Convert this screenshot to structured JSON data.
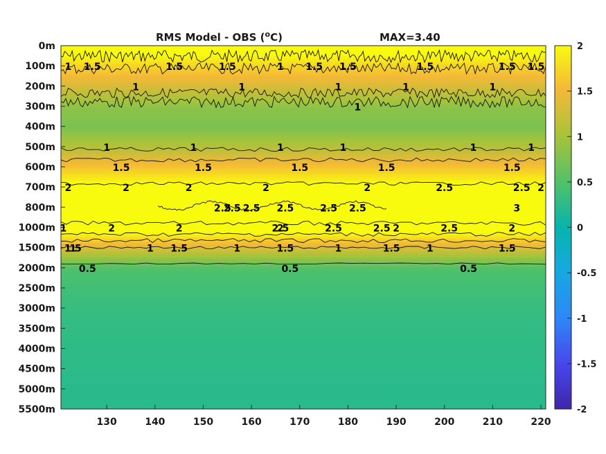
{
  "chart_data": {
    "type": "heatmap",
    "title": "RMS Model - OBS (",
    "title_superscript": "o",
    "title_unit": "C)",
    "annotation": "MAX=3.40",
    "x_ticks": [
      130,
      140,
      150,
      160,
      170,
      180,
      190,
      200,
      210,
      220
    ],
    "xlim": [
      120.5,
      221
    ],
    "y_ticks": [
      "0m",
      "100m",
      "200m",
      "300m",
      "400m",
      "500m",
      "600m",
      "700m",
      "800m",
      "1000m",
      "1500m",
      "2000m",
      "2500m",
      "3000m",
      "3500m",
      "4000m",
      "4500m",
      "5000m",
      "5500m"
    ],
    "colorbar": {
      "ticks": [
        2,
        1.5,
        1,
        0.5,
        0,
        -0.5,
        -1,
        -1.5,
        -2
      ],
      "tick_labels": [
        "2",
        "1.5",
        "1",
        "0.5",
        "0",
        "-0.5",
        "-1",
        "-1.5",
        "-2"
      ],
      "range": [
        -2,
        2
      ],
      "colormap": "parula"
    },
    "depth_profile_rms": [
      {
        "depth": "0m",
        "value": 2.2
      },
      {
        "depth": "100m",
        "value": 1.7
      },
      {
        "depth": "200m",
        "value": 1.3
      },
      {
        "depth": "300m",
        "value": 0.85
      },
      {
        "depth": "400m",
        "value": 0.75
      },
      {
        "depth": "500m",
        "value": 1.1
      },
      {
        "depth": "600m",
        "value": 1.6
      },
      {
        "depth": "700m",
        "value": 2.1
      },
      {
        "depth": "800m",
        "value": 2.6
      },
      {
        "depth": "1000m",
        "value": 2.2
      },
      {
        "depth": "1500m",
        "value": 1.3
      },
      {
        "depth": "2000m",
        "value": 0.5
      },
      {
        "depth": "2500m",
        "value": 0.4
      },
      {
        "depth": "3000m",
        "value": 0.33
      },
      {
        "depth": "3500m",
        "value": 0.3
      },
      {
        "depth": "4000m",
        "value": 0.28
      },
      {
        "depth": "4500m",
        "value": 0.26
      },
      {
        "depth": "5000m",
        "value": 0.24
      },
      {
        "depth": "5500m",
        "value": 0.24
      }
    ],
    "contour_labels": [
      {
        "text": "1",
        "x": 122,
        "y": "100m"
      },
      {
        "text": "1.5",
        "x": 127,
        "y": "100m"
      },
      {
        "text": "1.5",
        "x": 144,
        "y": "100m"
      },
      {
        "text": "1.5",
        "x": 155,
        "y": "100m"
      },
      {
        "text": "1",
        "x": 166,
        "y": "100m"
      },
      {
        "text": "1.5",
        "x": 173,
        "y": "100m"
      },
      {
        "text": "1.5",
        "x": 180,
        "y": "100m"
      },
      {
        "text": "1.5",
        "x": 196,
        "y": "100m"
      },
      {
        "text": "1.5",
        "x": 213,
        "y": "100m"
      },
      {
        "text": "1.5",
        "x": 219,
        "y": "100m"
      },
      {
        "text": "1",
        "x": 136,
        "y": "200m"
      },
      {
        "text": "1",
        "x": 158,
        "y": "200m"
      },
      {
        "text": "1",
        "x": 178,
        "y": "200m"
      },
      {
        "text": "1",
        "x": 192,
        "y": "200m"
      },
      {
        "text": "1",
        "x": 210,
        "y": "200m"
      },
      {
        "text": "1",
        "x": 182,
        "y": "300m"
      },
      {
        "text": "1",
        "x": 130,
        "y": "500m"
      },
      {
        "text": "1",
        "x": 148,
        "y": "500m"
      },
      {
        "text": "1",
        "x": 166,
        "y": "500m"
      },
      {
        "text": "1",
        "x": 179,
        "y": "500m"
      },
      {
        "text": "1",
        "x": 206,
        "y": "500m"
      },
      {
        "text": "1",
        "x": 218,
        "y": "500m"
      },
      {
        "text": "1.5",
        "x": 133,
        "y": "600m"
      },
      {
        "text": "1.5",
        "x": 150,
        "y": "600m"
      },
      {
        "text": "1.5",
        "x": 170,
        "y": "600m"
      },
      {
        "text": "1.5",
        "x": 188,
        "y": "600m"
      },
      {
        "text": "1.5",
        "x": 214,
        "y": "600m"
      },
      {
        "text": "2",
        "x": 122,
        "y": "700m"
      },
      {
        "text": "2",
        "x": 134,
        "y": "700m"
      },
      {
        "text": "2",
        "x": 147,
        "y": "700m"
      },
      {
        "text": "2",
        "x": 163,
        "y": "700m"
      },
      {
        "text": "2",
        "x": 184,
        "y": "700m"
      },
      {
        "text": "2",
        "x": 220,
        "y": "700m"
      },
      {
        "text": "2.5",
        "x": 200,
        "y": "700m"
      },
      {
        "text": "2.5",
        "x": 216,
        "y": "700m"
      },
      {
        "text": "2.5",
        "x": 154,
        "y": "800m"
      },
      {
        "text": "2.5",
        "x": 160,
        "y": "800m"
      },
      {
        "text": "2.5",
        "x": 167,
        "y": "800m"
      },
      {
        "text": "2.5",
        "x": 176,
        "y": "800m"
      },
      {
        "text": "2.5",
        "x": 182,
        "y": "800m"
      },
      {
        "text": "2.5",
        "x": 156,
        "y": "800m"
      },
      {
        "text": "3",
        "x": 215,
        "y": "800m"
      },
      {
        "text": "2.5",
        "x": 166,
        "y": "1000m"
      },
      {
        "text": "2.5",
        "x": 177,
        "y": "1000m"
      },
      {
        "text": "2.5",
        "x": 187,
        "y": "1000m"
      },
      {
        "text": "2.5",
        "x": 201,
        "y": "1000m"
      },
      {
        "text": "2",
        "x": 131,
        "y": "1000m"
      },
      {
        "text": "2",
        "x": 145,
        "y": "1000m"
      },
      {
        "text": "2",
        "x": 166,
        "y": "1000m"
      },
      {
        "text": "2",
        "x": 190,
        "y": "1000m"
      },
      {
        "text": "2",
        "x": 214,
        "y": "1000m"
      },
      {
        "text": "1",
        "x": 121,
        "y": "1000m"
      },
      {
        "text": "1.5",
        "x": 123,
        "y": "1500m"
      },
      {
        "text": "1.5",
        "x": 145,
        "y": "1500m"
      },
      {
        "text": "1.5",
        "x": 167,
        "y": "1500m"
      },
      {
        "text": "1.5",
        "x": 189,
        "y": "1500m"
      },
      {
        "text": "1.5",
        "x": 213,
        "y": "1500m"
      },
      {
        "text": "1",
        "x": 123,
        "y": "1500m"
      },
      {
        "text": "1",
        "x": 139,
        "y": "1500m"
      },
      {
        "text": "1",
        "x": 157,
        "y": "1500m"
      },
      {
        "text": "1",
        "x": 178,
        "y": "1500m"
      },
      {
        "text": "1",
        "x": 197,
        "y": "1500m"
      },
      {
        "text": "0.5",
        "x": 126,
        "y": "2000m"
      },
      {
        "text": "0.5",
        "x": 168,
        "y": "2000m"
      },
      {
        "text": "0.5",
        "x": 205,
        "y": "2000m"
      }
    ]
  }
}
